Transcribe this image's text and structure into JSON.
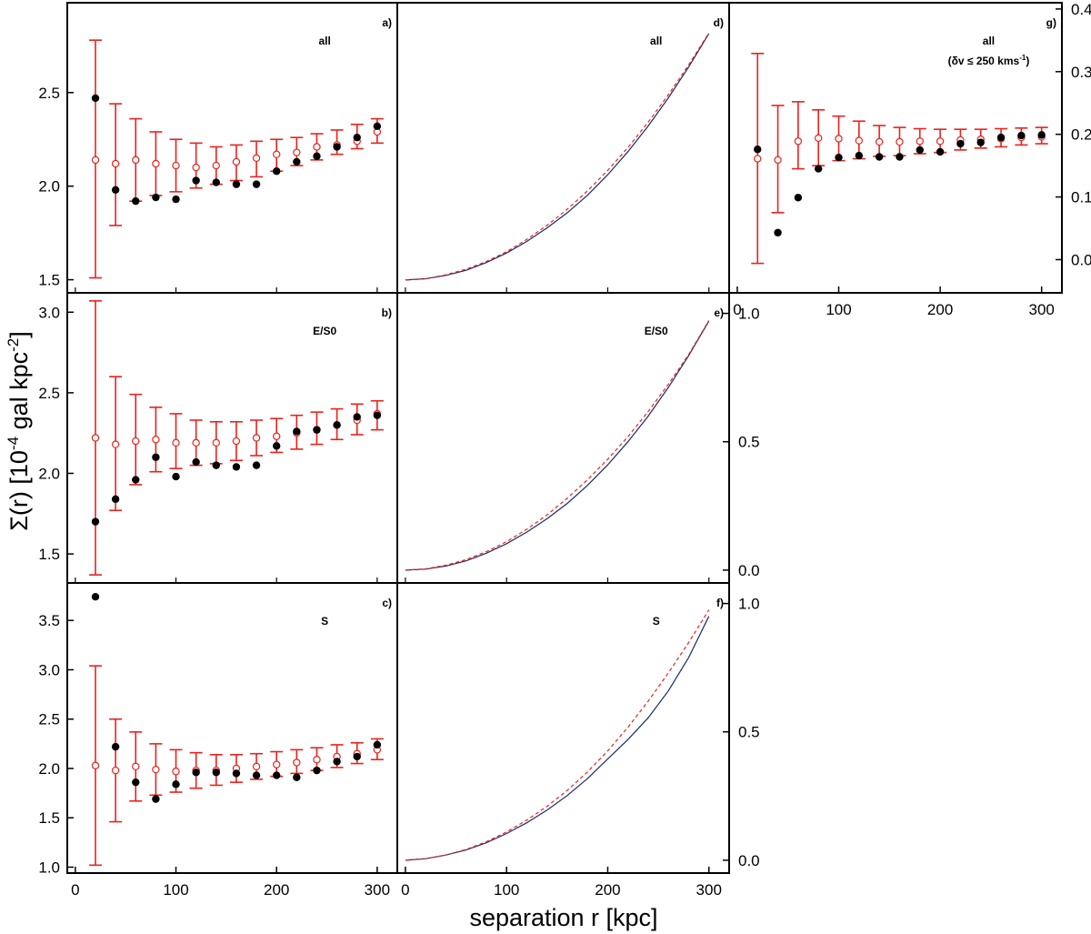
{
  "figure": {
    "xlabel": "separation r [kpc]",
    "ylabel_main": "Σ(r) [10",
    "ylabel_exp": "-4",
    "ylabel_rest": " gal kpc",
    "ylabel_exp2": "-2",
    "ylabel_end": "]"
  },
  "colors": {
    "model": "#e8221c",
    "observed": "#000000",
    "curve_obs": "#1c2a6b",
    "curve_model": "#e8221c"
  },
  "chart_data": [
    {
      "id": "a",
      "type": "scatter",
      "panel_label": "a)",
      "category": "all",
      "xlim": [
        -8,
        320
      ],
      "ylim": [
        1.43,
        2.98
      ],
      "yticks": [
        "1.5",
        "2.0",
        "2.5"
      ],
      "ytick_values": [
        1.5,
        2.0,
        2.5
      ],
      "xticks": [],
      "x": [
        20,
        40,
        60,
        80,
        100,
        120,
        140,
        160,
        180,
        200,
        220,
        240,
        260,
        280,
        300
      ],
      "observed": [
        2.47,
        1.98,
        1.92,
        1.94,
        1.93,
        2.03,
        2.02,
        2.01,
        2.01,
        2.08,
        2.13,
        2.16,
        2.21,
        2.26,
        2.32
      ],
      "model_mean": [
        2.14,
        2.12,
        2.14,
        2.12,
        2.11,
        2.1,
        2.11,
        2.13,
        2.15,
        2.17,
        2.18,
        2.21,
        2.22,
        2.24,
        2.29
      ],
      "model_low": [
        1.51,
        1.79,
        1.92,
        1.95,
        1.97,
        1.99,
        2.01,
        2.03,
        2.05,
        2.08,
        2.11,
        2.14,
        2.17,
        2.2,
        2.23
      ],
      "model_high": [
        2.78,
        2.44,
        2.36,
        2.29,
        2.25,
        2.23,
        2.21,
        2.22,
        2.24,
        2.25,
        2.26,
        2.28,
        2.3,
        2.33,
        2.36
      ]
    },
    {
      "id": "b",
      "type": "scatter",
      "panel_label": "b)",
      "category": "E/S0",
      "xlim": [
        -8,
        320
      ],
      "ylim": [
        1.32,
        3.12
      ],
      "yticks": [
        "1.5",
        "2.0",
        "2.5",
        "3.0"
      ],
      "ytick_values": [
        1.5,
        2.0,
        2.5,
        3.0
      ],
      "xticks": [],
      "x": [
        20,
        40,
        60,
        80,
        100,
        120,
        140,
        160,
        180,
        200,
        220,
        240,
        260,
        280,
        300
      ],
      "observed": [
        1.7,
        1.84,
        1.96,
        2.1,
        1.98,
        2.07,
        2.05,
        2.04,
        2.05,
        2.17,
        2.26,
        2.27,
        2.3,
        2.35,
        2.36
      ],
      "model_mean": [
        2.22,
        2.18,
        2.2,
        2.21,
        2.19,
        2.19,
        2.19,
        2.2,
        2.22,
        2.23,
        2.25,
        2.27,
        2.3,
        2.33,
        2.37
      ],
      "model_low": [
        1.37,
        1.77,
        1.93,
        2.01,
        2.03,
        2.05,
        2.06,
        2.08,
        2.11,
        2.13,
        2.15,
        2.18,
        2.21,
        2.24,
        2.27
      ],
      "model_high": [
        3.07,
        2.6,
        2.49,
        2.41,
        2.37,
        2.33,
        2.32,
        2.32,
        2.33,
        2.34,
        2.36,
        2.38,
        2.4,
        2.43,
        2.45
      ]
    },
    {
      "id": "c",
      "type": "scatter",
      "panel_label": "c)",
      "category": "S",
      "xlim": [
        -8,
        320
      ],
      "ylim": [
        0.94,
        3.88
      ],
      "yticks": [
        "1.0",
        "1.5",
        "2.0",
        "2.5",
        "3.0",
        "3.5"
      ],
      "ytick_values": [
        1.0,
        1.5,
        2.0,
        2.5,
        3.0,
        3.5
      ],
      "xticks": [
        "0",
        "100",
        "200",
        "300"
      ],
      "xtick_values": [
        0,
        100,
        200,
        300
      ],
      "x": [
        20,
        40,
        60,
        80,
        100,
        120,
        140,
        160,
        180,
        200,
        220,
        240,
        260,
        280,
        300
      ],
      "observed": [
        3.74,
        2.22,
        1.86,
        1.69,
        1.84,
        1.96,
        1.96,
        1.95,
        1.93,
        1.93,
        1.91,
        1.98,
        2.07,
        2.12,
        2.24
      ],
      "model_mean": [
        2.03,
        1.98,
        2.02,
        1.99,
        1.97,
        1.98,
        1.98,
        2.0,
        2.02,
        2.04,
        2.06,
        2.09,
        2.12,
        2.15,
        2.19
      ],
      "model_low": [
        1.02,
        1.46,
        1.67,
        1.73,
        1.76,
        1.8,
        1.83,
        1.86,
        1.89,
        1.92,
        1.95,
        1.98,
        2.01,
        2.05,
        2.09
      ],
      "model_high": [
        3.04,
        2.5,
        2.37,
        2.25,
        2.19,
        2.16,
        2.14,
        2.14,
        2.15,
        2.17,
        2.19,
        2.21,
        2.24,
        2.26,
        2.3
      ]
    },
    {
      "id": "d",
      "type": "line",
      "panel_label": "d)",
      "category": "all",
      "xlim": [
        -8,
        320
      ],
      "ylim": [
        -0.05,
        1.08
      ],
      "yticks": [],
      "xticks": [],
      "x": [
        0,
        20,
        40,
        60,
        80,
        100,
        120,
        140,
        160,
        180,
        200,
        220,
        240,
        260,
        280,
        300
      ],
      "series": [
        {
          "name": "observed",
          "values": [
            0.0,
            0.005,
            0.018,
            0.038,
            0.068,
            0.105,
            0.15,
            0.203,
            0.262,
            0.33,
            0.41,
            0.5,
            0.6,
            0.71,
            0.83,
            0.96
          ]
        },
        {
          "name": "model",
          "values": [
            0.0,
            0.005,
            0.02,
            0.042,
            0.072,
            0.11,
            0.158,
            0.213,
            0.276,
            0.347,
            0.427,
            0.516,
            0.615,
            0.722,
            0.838,
            0.962
          ]
        }
      ]
    },
    {
      "id": "e",
      "type": "line",
      "panel_label": "e)",
      "category": "E/S0",
      "xlim": [
        -8,
        320
      ],
      "ylim": [
        -0.05,
        1.08
      ],
      "yticks": [
        "0.0",
        "0.5",
        "1.0"
      ],
      "ytick_values": [
        0.0,
        0.5,
        1.0
      ],
      "xticks": [],
      "x": [
        0,
        20,
        40,
        60,
        80,
        100,
        120,
        140,
        160,
        180,
        200,
        220,
        240,
        260,
        280,
        300
      ],
      "series": [
        {
          "name": "observed",
          "values": [
            0.0,
            0.004,
            0.016,
            0.036,
            0.066,
            0.103,
            0.148,
            0.2,
            0.26,
            0.33,
            0.41,
            0.5,
            0.6,
            0.712,
            0.836,
            0.97
          ]
        },
        {
          "name": "model",
          "values": [
            0.0,
            0.005,
            0.019,
            0.041,
            0.072,
            0.111,
            0.159,
            0.215,
            0.28,
            0.352,
            0.432,
            0.52,
            0.618,
            0.724,
            0.84,
            0.972
          ]
        }
      ]
    },
    {
      "id": "f",
      "type": "line",
      "panel_label": "f)",
      "category": "S",
      "xlim": [
        -8,
        320
      ],
      "ylim": [
        -0.05,
        1.08
      ],
      "yticks": [
        "0.0",
        "0.5",
        "1.0"
      ],
      "ytick_values": [
        0.0,
        0.5,
        1.0
      ],
      "xticks": [
        "0",
        "100",
        "200",
        "300"
      ],
      "xtick_values": [
        0,
        100,
        200,
        300
      ],
      "x": [
        0,
        20,
        40,
        60,
        80,
        100,
        120,
        140,
        160,
        180,
        200,
        220,
        240,
        260,
        280,
        300
      ],
      "series": [
        {
          "name": "observed",
          "values": [
            0.0,
            0.006,
            0.02,
            0.04,
            0.068,
            0.104,
            0.146,
            0.195,
            0.252,
            0.318,
            0.395,
            0.47,
            0.555,
            0.66,
            0.79,
            0.95
          ]
        },
        {
          "name": "model",
          "values": [
            0.0,
            0.006,
            0.02,
            0.042,
            0.072,
            0.11,
            0.156,
            0.21,
            0.272,
            0.344,
            0.426,
            0.518,
            0.62,
            0.73,
            0.848,
            0.975
          ]
        }
      ]
    },
    {
      "id": "g",
      "type": "scatter",
      "panel_label": "g)",
      "category": "all",
      "note": "(δv ≤ 250 kms",
      "note_exp": "-1",
      "note_end": ")",
      "xlim": [
        -8,
        320
      ],
      "ylim": [
        -0.053,
        0.41
      ],
      "yticks": [
        "0.0",
        "0.1",
        "0.2",
        "0.3",
        "0.4"
      ],
      "ytick_values": [
        0.0,
        0.1,
        0.2,
        0.3,
        0.4
      ],
      "xticks": [
        "0",
        "100",
        "200",
        "300"
      ],
      "xtick_values": [
        0,
        100,
        200,
        300
      ],
      "x": [
        20,
        40,
        60,
        80,
        100,
        120,
        140,
        160,
        180,
        200,
        220,
        240,
        260,
        280,
        300
      ],
      "observed": [
        0.176,
        0.043,
        0.099,
        0.145,
        0.163,
        0.166,
        0.164,
        0.164,
        0.175,
        0.172,
        0.185,
        0.187,
        0.195,
        0.198,
        0.199
      ],
      "model_mean": [
        0.161,
        0.159,
        0.189,
        0.194,
        0.193,
        0.19,
        0.188,
        0.188,
        0.189,
        0.189,
        0.191,
        0.192,
        0.193,
        0.195,
        0.196
      ],
      "model_low": [
        -0.006,
        0.075,
        0.145,
        0.15,
        0.158,
        0.161,
        0.165,
        0.166,
        0.169,
        0.171,
        0.175,
        0.178,
        0.18,
        0.183,
        0.185
      ],
      "model_high": [
        0.329,
        0.246,
        0.252,
        0.239,
        0.229,
        0.221,
        0.214,
        0.211,
        0.209,
        0.208,
        0.208,
        0.208,
        0.209,
        0.21,
        0.211
      ]
    }
  ]
}
